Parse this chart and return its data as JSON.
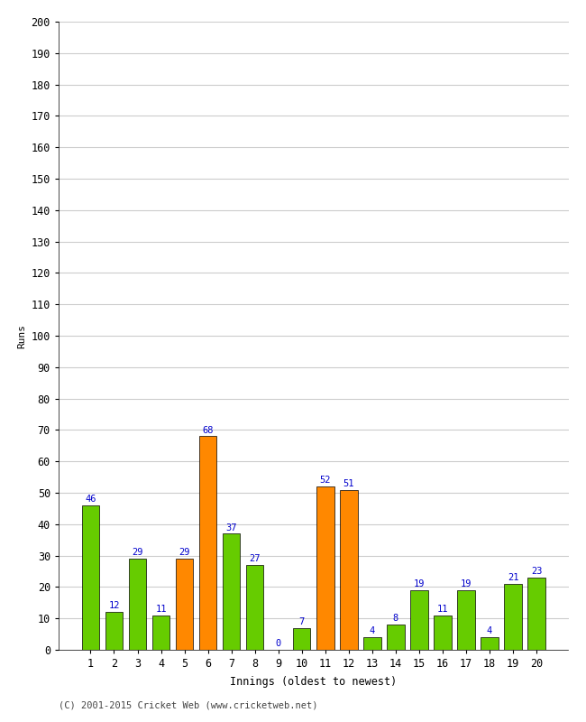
{
  "innings": [
    1,
    2,
    3,
    4,
    5,
    6,
    7,
    8,
    9,
    10,
    11,
    12,
    13,
    14,
    15,
    16,
    17,
    18,
    19,
    20
  ],
  "runs": [
    46,
    12,
    29,
    11,
    29,
    68,
    37,
    27,
    0,
    7,
    52,
    51,
    4,
    8,
    19,
    11,
    19,
    4,
    21,
    23
  ],
  "colors": [
    "#66cc00",
    "#66cc00",
    "#66cc00",
    "#66cc00",
    "#ff8800",
    "#ff8800",
    "#66cc00",
    "#66cc00",
    "#66cc00",
    "#66cc00",
    "#ff8800",
    "#ff8800",
    "#66cc00",
    "#66cc00",
    "#66cc00",
    "#66cc00",
    "#66cc00",
    "#66cc00",
    "#66cc00",
    "#66cc00"
  ],
  "ylabel": "Runs",
  "xlabel": "Innings (oldest to newest)",
  "ylim": [
    0,
    200
  ],
  "yticks": [
    0,
    10,
    20,
    30,
    40,
    50,
    60,
    70,
    80,
    90,
    100,
    110,
    120,
    130,
    140,
    150,
    160,
    170,
    180,
    190,
    200
  ],
  "label_color": "#0000cc",
  "bar_edge_color": "#000000",
  "background_color": "#ffffff",
  "grid_color": "#cccccc",
  "footer": "(C) 2001-2015 Cricket Web (www.cricketweb.net)",
  "label_fontsize": 7.5,
  "axis_fontsize": 8.5,
  "footer_fontsize": 7.5,
  "ylabel_fontsize": 8
}
